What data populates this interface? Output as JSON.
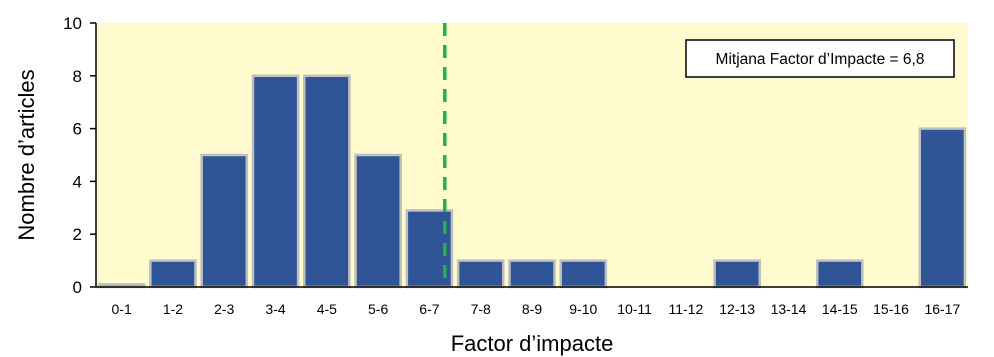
{
  "chart_data": {
    "type": "bar",
    "title": "",
    "xlabel": "Factor d’impacte",
    "ylabel": "Nombre d’articles",
    "categories": [
      "0-1",
      "1-2",
      "2-3",
      "3-4",
      "4-5",
      "5-6",
      "6-7",
      "7-8",
      "8-9",
      "9-10",
      "10-11",
      "11-12",
      "12-13",
      "13-14",
      "14-15",
      "15-16",
      "16-17"
    ],
    "values": [
      0.1,
      1,
      5,
      8,
      8,
      5,
      2.9,
      1,
      1,
      1,
      0,
      0,
      1,
      0,
      1,
      0,
      6
    ],
    "ylim": [
      0,
      10
    ],
    "yticks": [
      "0",
      "2",
      "4",
      "6",
      "8",
      "10"
    ],
    "grid": false,
    "mean_line": {
      "x": 6.8,
      "label": "Mitjana Factor d’Impacte = 6,8",
      "placement": "top-right"
    },
    "colors": {
      "bar_fill": "#2F5597",
      "bar_stroke": "#BFBFBF",
      "plot_background": "#FFFBCF",
      "mean_line": "#22B14C",
      "axis": "#000000"
    }
  }
}
